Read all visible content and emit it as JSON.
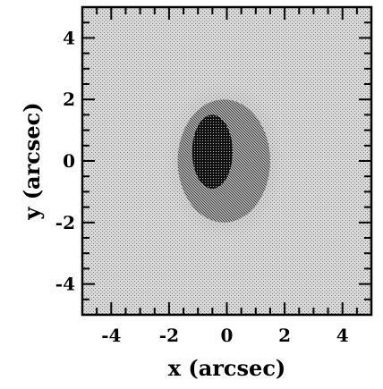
{
  "chart_data": {
    "type": "heatmap",
    "title": "",
    "xlabel": "x (arcsec)",
    "ylabel": "y (arcsec)",
    "xlim": [
      -5,
      5
    ],
    "ylim": [
      -5,
      5
    ],
    "x_ticks": [
      -4,
      -2,
      0,
      2,
      4
    ],
    "y_ticks": [
      -4,
      -2,
      0,
      2,
      4
    ],
    "x_tick_labels": [
      "-4",
      "-2",
      "0",
      "2",
      "4"
    ],
    "y_tick_labels": [
      "-4",
      "-2",
      "0",
      "2",
      "4"
    ],
    "grid": false,
    "colormap": "greyscale dither",
    "features": [
      {
        "kind": "core",
        "center_x": -0.5,
        "center_y": 0.3,
        "half_width_x": 0.7,
        "half_height_y": 1.2,
        "level": 0.95
      },
      {
        "kind": "halo",
        "center_x": -0.1,
        "center_y": 0.0,
        "half_width_x": 1.6,
        "half_height_y": 2.0,
        "level": 0.6
      }
    ],
    "background_level": 0.3,
    "colors": {
      "background": "#cfcfcf",
      "halo": "#8a8a8a",
      "core": "#202020",
      "axes": "#000000"
    }
  }
}
